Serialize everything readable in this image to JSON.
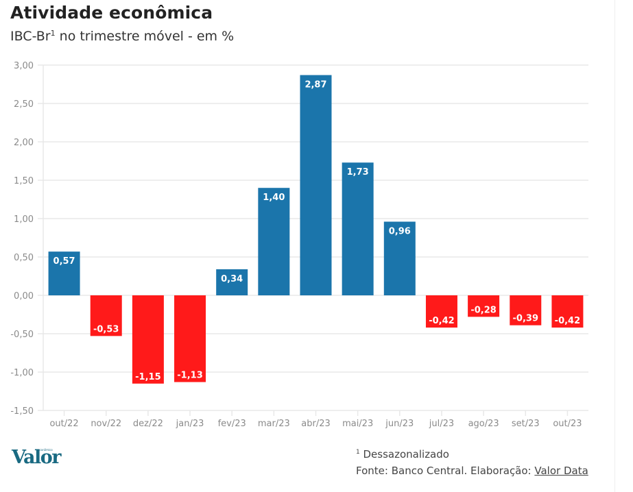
{
  "header": {
    "title": "Atividade econômica",
    "subtitle_main": "IBC-Br",
    "subtitle_sup": "1",
    "subtitle_rest": " no trimestre móvel - em %"
  },
  "chart_data": {
    "type": "bar",
    "title": "Atividade econômica",
    "subtitle": "IBC-Br¹ no trimestre móvel - em %",
    "xlabel": "",
    "ylabel": "",
    "categories": [
      "out/22",
      "nov/22",
      "dez/22",
      "jan/23",
      "fev/23",
      "mar/23",
      "abr/23",
      "mai/23",
      "jun/23",
      "jul/23",
      "ago/23",
      "set/23",
      "out/23"
    ],
    "values": [
      0.57,
      -0.53,
      -1.15,
      -1.13,
      0.34,
      1.4,
      2.87,
      1.73,
      0.96,
      -0.42,
      -0.28,
      -0.39,
      -0.42
    ],
    "value_labels": [
      "0,57",
      "-0,53",
      "-1,15",
      "-1,13",
      "0,34",
      "1,40",
      "2,87",
      "1,73",
      "0,96",
      "-0,42",
      "-0,28",
      "-0,39",
      "-0,42"
    ],
    "ylim": [
      -1.5,
      3.0
    ],
    "yticks": [
      3.0,
      2.5,
      2.0,
      1.5,
      1.0,
      0.5,
      0.0,
      -0.5,
      -1.0,
      -1.5
    ],
    "ytick_labels": [
      "3,00",
      "2,50",
      "2,00",
      "1,50",
      "1,00",
      "0,50",
      "0,00",
      "-0,50",
      "-1,00",
      "-1,50"
    ],
    "grid": true,
    "legend": "none",
    "colors": {
      "positive": "#1b75ab",
      "negative": "#ff1a1a",
      "grid": "#e8e8e8",
      "tick_text": "#8a8a8a"
    }
  },
  "footer": {
    "logo_text": "Valor",
    "logo_small": "econômico",
    "footnote_sup": "1",
    "footnote_text": " Dessazonalizado",
    "source_prefix": "Fonte: Banco Central. Elaboração: ",
    "source_link": "Valor Data"
  }
}
